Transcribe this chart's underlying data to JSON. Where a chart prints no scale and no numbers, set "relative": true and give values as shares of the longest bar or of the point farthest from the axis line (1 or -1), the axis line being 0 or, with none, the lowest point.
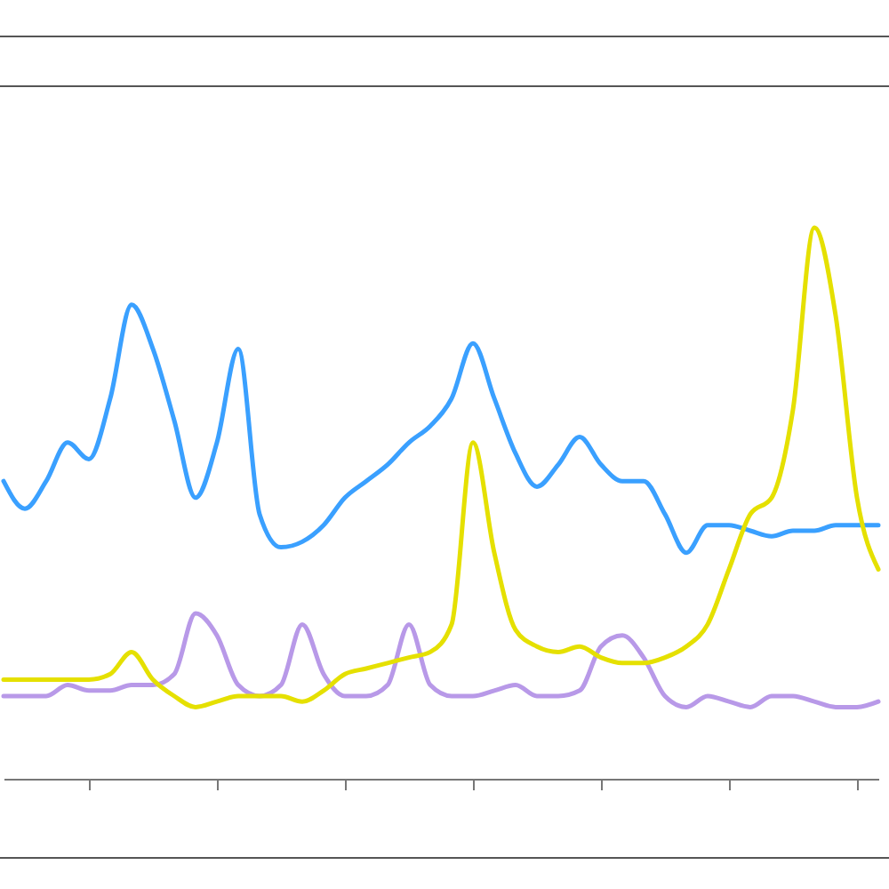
{
  "chart_data": {
    "type": "line",
    "relative": true,
    "grid": false,
    "marker": "none",
    "line_style": "solid",
    "categories": [
      null,
      null,
      null,
      null,
      null,
      null,
      null,
      null,
      null,
      null,
      null,
      null,
      null,
      null,
      null,
      null,
      null,
      null,
      null,
      null,
      null,
      null,
      null,
      null,
      null,
      null,
      null,
      null,
      null,
      null,
      null,
      null,
      null,
      null,
      null,
      null,
      null,
      null,
      null,
      null,
      null,
      null
    ],
    "series": [
      {
        "color": "#b899e8",
        "values": [
          0.15,
          0.15,
          0.15,
          0.17,
          0.16,
          0.16,
          0.17,
          0.17,
          0.19,
          0.3,
          0.26,
          0.17,
          0.15,
          0.17,
          0.28,
          0.19,
          0.15,
          0.15,
          0.17,
          0.28,
          0.17,
          0.15,
          0.15,
          0.16,
          0.17,
          0.15,
          0.15,
          0.16,
          0.24,
          0.26,
          0.22,
          0.15,
          0.13,
          0.15,
          0.14,
          0.13,
          0.15,
          0.15,
          0.14,
          0.13,
          0.13,
          0.14
        ]
      },
      {
        "color": "#3aa0ff",
        "values": [
          0.54,
          0.49,
          0.54,
          0.61,
          0.58,
          0.69,
          0.86,
          0.78,
          0.65,
          0.51,
          0.61,
          0.78,
          0.48,
          0.42,
          0.43,
          0.46,
          0.51,
          0.54,
          0.57,
          0.61,
          0.64,
          0.69,
          0.79,
          0.69,
          0.59,
          0.53,
          0.57,
          0.62,
          0.57,
          0.54,
          0.54,
          0.48,
          0.41,
          0.46,
          0.46,
          0.45,
          0.44,
          0.45,
          0.45,
          0.46,
          0.46,
          0.46
        ]
      },
      {
        "color": "#e5e000",
        "values": [
          0.18,
          0.18,
          0.18,
          0.18,
          0.18,
          0.19,
          0.23,
          0.18,
          0.15,
          0.13,
          0.14,
          0.15,
          0.15,
          0.15,
          0.14,
          0.16,
          0.19,
          0.2,
          0.21,
          0.22,
          0.23,
          0.28,
          0.61,
          0.41,
          0.27,
          0.24,
          0.23,
          0.24,
          0.22,
          0.21,
          0.21,
          0.22,
          0.24,
          0.28,
          0.38,
          0.48,
          0.51,
          0.67,
          1.0,
          0.84,
          0.51,
          0.38
        ]
      }
    ]
  }
}
